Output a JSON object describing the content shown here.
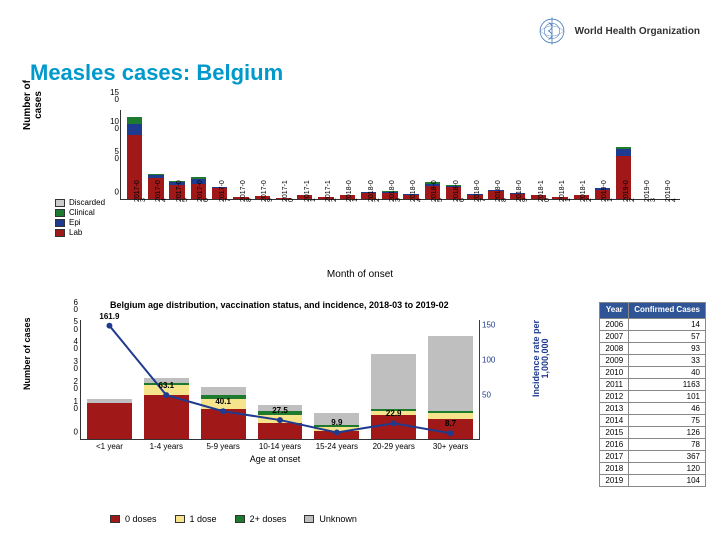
{
  "logo_text": "World Health\nOrganization",
  "title": "Measles cases: Belgium",
  "title_color": "#0099cc",
  "colors": {
    "lab": "#a01818",
    "epi": "#1f3b8f",
    "clinical": "#1e7a2e",
    "discarded": "#cccccc",
    "dose0": "#a01818",
    "dose1": "#f5e48c",
    "dose2": "#1e7a2e",
    "unknown": "#bfbfbf",
    "line": "#1f3b8f",
    "table_header": "#2f5597"
  },
  "chart1": {
    "ylabel": "Number of\ncases",
    "xlabel": "Month of\nonset",
    "ymax": 150,
    "yticks": [
      "0",
      "5\n0",
      "10\n0",
      "15\n0"
    ],
    "legend": [
      {
        "label": "Discarded",
        "color": "#cccccc"
      },
      {
        "label": "Clinical",
        "color": "#1e7a2e"
      },
      {
        "label": "Epi",
        "color": "#1f3b8f"
      },
      {
        "label": "Lab",
        "color": "#a01818"
      }
    ],
    "months": [
      {
        "label": "2017-0\n3",
        "lab": 108,
        "epi": 18,
        "clinical": 12,
        "discarded": 0
      },
      {
        "label": "2017-0\n4",
        "lab": 35,
        "epi": 5,
        "clinical": 2,
        "discarded": 0
      },
      {
        "label": "2017-0\n5",
        "lab": 24,
        "epi": 4,
        "clinical": 2,
        "discarded": 0
      },
      {
        "label": "2017-0\n6",
        "lab": 26,
        "epi": 8,
        "clinical": 3,
        "discarded": 0
      },
      {
        "label": "2017-0\n7",
        "lab": 18,
        "epi": 2,
        "clinical": 0,
        "discarded": 0
      },
      {
        "label": "2017-0\n8",
        "lab": 3,
        "epi": 0,
        "clinical": 0,
        "discarded": 0
      },
      {
        "label": "2017-0\n9",
        "lab": 5,
        "epi": 0,
        "clinical": 0,
        "discarded": 0
      },
      {
        "label": "2017-1\n0",
        "lab": 2,
        "epi": 0,
        "clinical": 0,
        "discarded": 0
      },
      {
        "label": "2017-1\n1",
        "lab": 6,
        "epi": 0,
        "clinical": 0,
        "discarded": 0
      },
      {
        "label": "2017-1\n2",
        "lab": 3,
        "epi": 0,
        "clinical": 0,
        "discarded": 0
      },
      {
        "label": "2018-0\n1",
        "lab": 6,
        "epi": 0,
        "clinical": 0,
        "discarded": 0
      },
      {
        "label": "2018-0\n2",
        "lab": 11,
        "epi": 1,
        "clinical": 0,
        "discarded": 0
      },
      {
        "label": "2018-0\n3",
        "lab": 10,
        "epi": 2,
        "clinical": 1,
        "discarded": 0
      },
      {
        "label": "2018-0\n4",
        "lab": 8,
        "epi": 1,
        "clinical": 0,
        "discarded": 0
      },
      {
        "label": "2018-0\n5",
        "lab": 22,
        "epi": 4,
        "clinical": 2,
        "discarded": 0
      },
      {
        "label": "2018-0\n6",
        "lab": 20,
        "epi": 3,
        "clinical": 1,
        "discarded": 0
      },
      {
        "label": "2018-0\n7",
        "lab": 7,
        "epi": 1,
        "clinical": 0,
        "discarded": 0
      },
      {
        "label": "2018-0\n8",
        "lab": 14,
        "epi": 2,
        "clinical": 0,
        "discarded": 0
      },
      {
        "label": "2018-0\n9",
        "lab": 10,
        "epi": 1,
        "clinical": 0,
        "discarded": 0
      },
      {
        "label": "2018-1\n0",
        "lab": 6,
        "epi": 0,
        "clinical": 0,
        "discarded": 0
      },
      {
        "label": "2018-1\n1",
        "lab": 3,
        "epi": 0,
        "clinical": 0,
        "discarded": 0
      },
      {
        "label": "2018-1\n2",
        "lab": 6,
        "epi": 0,
        "clinical": 0,
        "discarded": 0
      },
      {
        "label": "2019-0\n1",
        "lab": 16,
        "epi": 2,
        "clinical": 0,
        "discarded": 0
      },
      {
        "label": "2019-0\n2",
        "lab": 73,
        "epi": 12,
        "clinical": 3,
        "discarded": 0
      },
      {
        "label": "2019-0\n3",
        "lab": 0,
        "epi": 0,
        "clinical": 0,
        "discarded": 0
      },
      {
        "label": "2019-0\n4",
        "lab": 0,
        "epi": 0,
        "clinical": 0,
        "discarded": 0
      }
    ]
  },
  "chart2": {
    "title": "Belgium age distribution, vaccination status, and incidence, 2018-03 to 2019-02",
    "ylabel": "Number of cases",
    "ylabel2": "Incidence rate per\n1,000,000",
    "xlabel": "Age at\nonset",
    "ymax": 60,
    "yticks": [
      "0",
      "1\n0",
      "2\n0",
      "3\n0",
      "4\n0",
      "5\n0",
      "6\n0"
    ],
    "y2max": 170,
    "y2ticks": [
      50,
      100,
      150
    ],
    "legend": [
      {
        "label": "0 doses",
        "color": "#a01818"
      },
      {
        "label": "1 dose",
        "color": "#f5e48c"
      },
      {
        "label": "2+ doses",
        "color": "#1e7a2e"
      },
      {
        "label": "Unknown",
        "color": "#bfbfbf"
      }
    ],
    "bars": [
      {
        "label": "<1 year",
        "d0": 18,
        "d1": 0,
        "d2": 0,
        "unk": 2,
        "rate": 161.9
      },
      {
        "label": "1-4 years",
        "d0": 22,
        "d1": 5,
        "d2": 1,
        "unk": 3,
        "rate": 63.1
      },
      {
        "label": "5-9 years",
        "d0": 15,
        "d1": 5,
        "d2": 2,
        "unk": 4,
        "rate": 40.1
      },
      {
        "label": "10-14 years",
        "d0": 8,
        "d1": 4,
        "d2": 2,
        "unk": 3,
        "rate": 27.5
      },
      {
        "label": "15-24 years",
        "d0": 4,
        "d1": 2,
        "d2": 1,
        "unk": 6,
        "rate": 9.9
      },
      {
        "label": "20-29 years",
        "d0": 12,
        "d1": 2,
        "d2": 1,
        "unk": 28,
        "rate": 22.9
      },
      {
        "label": "30+ years",
        "d0": 10,
        "d1": 3,
        "d2": 1,
        "unk": 38,
        "rate": 8.7
      }
    ]
  },
  "table": {
    "headers": [
      "Year",
      "Confirmed\nCases"
    ],
    "rows": [
      [
        "2006",
        "14"
      ],
      [
        "2007",
        "57"
      ],
      [
        "2008",
        "93"
      ],
      [
        "2009",
        "33"
      ],
      [
        "2010",
        "40"
      ],
      [
        "2011",
        "1163"
      ],
      [
        "2012",
        "101"
      ],
      [
        "2013",
        "46"
      ],
      [
        "2014",
        "75"
      ],
      [
        "2015",
        "126"
      ],
      [
        "2016",
        "78"
      ],
      [
        "2017",
        "367"
      ],
      [
        "2018",
        "120"
      ],
      [
        "2019",
        "104"
      ]
    ]
  }
}
